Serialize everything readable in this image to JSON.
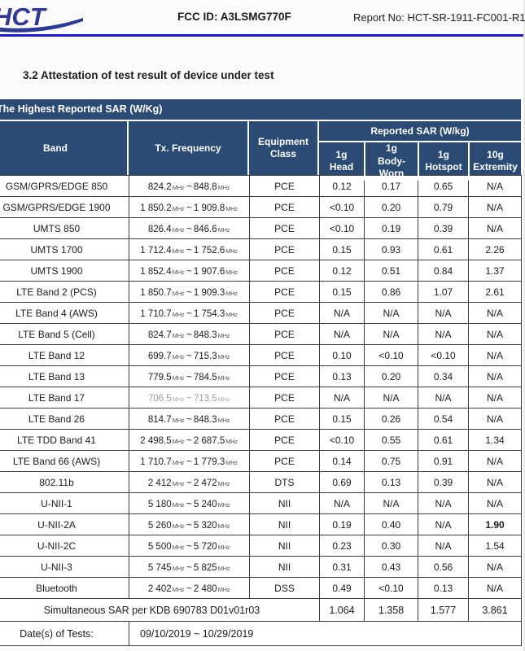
{
  "header": {
    "logo_text": "HCT",
    "fcc_id": "FCC ID: A3LSMG770F",
    "report_no": "Report No: HCT-SR-1911-FC001-R1"
  },
  "section_title": "3.2 Attestation of test result of device under test",
  "colors": {
    "header_navy": "#2b4a74",
    "rule_blue": "#2019d4",
    "logo_blue": "#2e3a96"
  },
  "table": {
    "title": "The Highest Reported SAR (W/Kg)",
    "freq_unit": "MHz",
    "range_sep": "~",
    "header": {
      "band": "Band",
      "tx_frequency": "Tx. Frequency",
      "equipment_class": "Equipment Class",
      "reported_sar_group": "Reported SAR (W/kg)",
      "sub": [
        {
          "line1": "1g",
          "line2": "Head"
        },
        {
          "line1": "1g",
          "line2": "Body-Worn"
        },
        {
          "line1": "1g",
          "line2": "Hotspot"
        },
        {
          "line1": "10g",
          "line2": "Extremity"
        }
      ]
    },
    "rows": [
      {
        "band": "GSM/GPRS/EDGE 850",
        "from": "824.2",
        "to": "848.8",
        "cls": "PCE",
        "head": "0.12",
        "body": "0.17",
        "hot": "0.65",
        "ext": "N/A"
      },
      {
        "band": "GSM/GPRS/EDGE 1900",
        "from": "1 850.2",
        "to": "1 909.8",
        "cls": "PCE",
        "head": "<0.10",
        "body": "0.20",
        "hot": "0.79",
        "ext": "N/A"
      },
      {
        "band": "UMTS 850",
        "from": "826.4",
        "to": "846.6",
        "cls": "PCE",
        "head": "<0.10",
        "body": "0.19",
        "hot": "0.39",
        "ext": "N/A"
      },
      {
        "band": "UMTS 1700",
        "from": "1 712.4",
        "to": "1 752.6",
        "cls": "PCE",
        "head": "0.15",
        "body": "0.93",
        "hot": "0.61",
        "ext": "2.26"
      },
      {
        "band": "UMTS 1900",
        "from": "1 852.4",
        "to": "1 907.6",
        "cls": "PCE",
        "head": "0.12",
        "body": "0.51",
        "hot": "0.84",
        "ext": "1.37"
      },
      {
        "band": "LTE Band 2 (PCS)",
        "from": "1 850.7",
        "to": "1 909.3",
        "cls": "PCE",
        "head": "0.15",
        "body": "0.86",
        "hot": "1.07",
        "ext": "2.61"
      },
      {
        "band": "LTE Band 4 (AWS)",
        "from": "1 710.7",
        "to": "1 754.3",
        "cls": "PCE",
        "head": "N/A",
        "body": "N/A",
        "hot": "N/A",
        "ext": "N/A"
      },
      {
        "band": "LTE Band 5 (Cell)",
        "from": "824.7",
        "to": "848.3",
        "cls": "PCE",
        "head": "N/A",
        "body": "N/A",
        "hot": "N/A",
        "ext": "N/A"
      },
      {
        "band": "LTE Band 12",
        "from": "699.7",
        "to": "715.3",
        "cls": "PCE",
        "head": "0.10",
        "body": "<0.10",
        "hot": "<0.10",
        "ext": "N/A"
      },
      {
        "band": "LTE Band 13",
        "from": "779.5",
        "to": "784.5",
        "cls": "PCE",
        "head": "0.13",
        "body": "0.20",
        "hot": "0.34",
        "ext": "N/A"
      },
      {
        "band": "LTE Band 17",
        "from": "706.5",
        "to": "713.5",
        "cls": "PCE",
        "head": "N/A",
        "body": "N/A",
        "hot": "N/A",
        "ext": "N/A",
        "muted": true
      },
      {
        "band": "LTE Band 26",
        "from": "814.7",
        "to": "848.3",
        "cls": "PCE",
        "head": "0.15",
        "body": "0.26",
        "hot": "0.54",
        "ext": "N/A"
      },
      {
        "band": "LTE TDD Band 41",
        "from": "2 498.5",
        "to": "2 687.5",
        "cls": "PCE",
        "head": "<0.10",
        "body": "0.55",
        "hot": "0.61",
        "ext": "1.34"
      },
      {
        "band": "LTE Band 66 (AWS)",
        "from": "1 710.7",
        "to": "1 779.3",
        "cls": "PCE",
        "head": "0.14",
        "body": "0.75",
        "hot": "0.91",
        "ext": "N/A"
      },
      {
        "band": "802.11b",
        "from": "2 412",
        "to": "2 472",
        "cls": "DTS",
        "head": "0.69",
        "body": "0.13",
        "hot": "0.39",
        "ext": "N/A"
      },
      {
        "band": "U-NII-1",
        "from": "5 180",
        "to": "5 240",
        "cls": "NII",
        "head": "N/A",
        "body": "N/A",
        "hot": "N/A",
        "ext": "N/A"
      },
      {
        "band": "U-NII-2A",
        "from": "5 260",
        "to": "5 320",
        "cls": "NII",
        "head": "0.19",
        "body": "0.40",
        "hot": "N/A",
        "ext": "1.90",
        "bold": true
      },
      {
        "band": "U-NII-2C",
        "from": "5 500",
        "to": "5 720",
        "cls": "NII",
        "head": "0.23",
        "body": "0.30",
        "hot": "N/A",
        "ext": "1.54"
      },
      {
        "band": "U-NII-3",
        "from": "5 745",
        "to": "5 825",
        "cls": "NII",
        "head": "0.31",
        "body": "0.43",
        "hot": "0.56",
        "ext": "N/A"
      },
      {
        "band": "Bluetooth",
        "from": "2 402",
        "to": "2 480",
        "cls": "DSS",
        "head": "0.49",
        "body": "<0.10",
        "hot": "0.13",
        "ext": "N/A"
      }
    ],
    "simultaneous": {
      "label": "Simultaneous SAR per KDB 690783 D01v01r03",
      "head": "1.064",
      "body": "1.358",
      "hot": "1.577",
      "ext": "3.861"
    },
    "dates": {
      "label": "Date(s) of Tests:",
      "value": "09/10/2019 ~ 10/29/2019"
    }
  }
}
